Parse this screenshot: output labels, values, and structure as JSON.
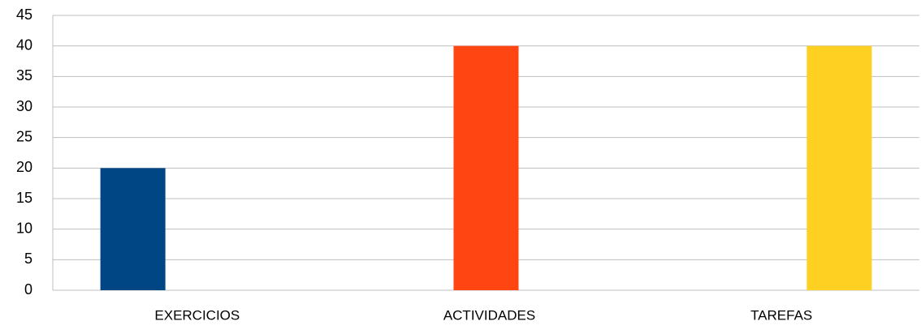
{
  "chart_data": {
    "type": "bar",
    "categories": [
      "EXERCICIOS",
      "ACTIVIDADES",
      "TAREFAS"
    ],
    "values": [
      20,
      40,
      40
    ],
    "colors": [
      "#004684",
      "#ff4512",
      "#fdd021"
    ],
    "ylim": [
      0,
      45
    ],
    "yticks": [
      0,
      5,
      10,
      15,
      20,
      25,
      30,
      35,
      40,
      45
    ],
    "grid": true
  }
}
